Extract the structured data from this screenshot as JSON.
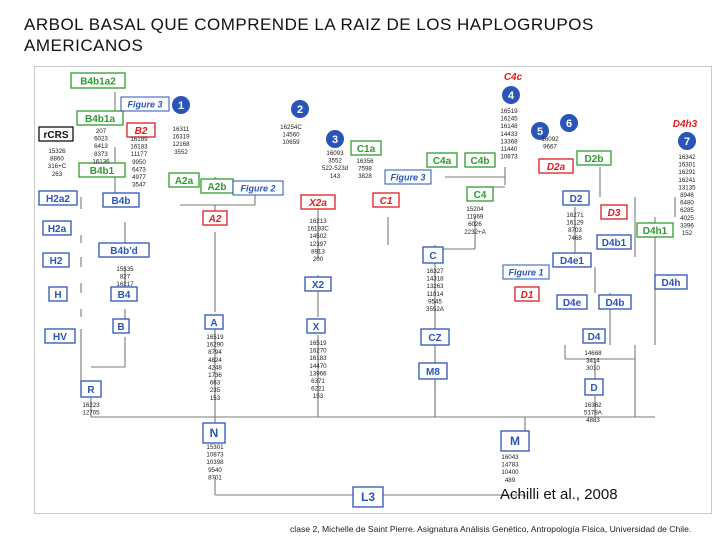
{
  "title": "ARBOL BASAL QUE COMPRENDE LA RAIZ DE LOS HAPLOGRUPOS AMERICANOS",
  "citation": "Achilli  et al., 2008",
  "footer": "clase 2, Michelle de Saint Pierre.  Asignatura Análisis Genético, Antropología Física, Universidad de Chile.",
  "colors": {
    "box_green": "#2e9b2e",
    "box_blue": "#2a55b8",
    "box_red": "#e01c1c",
    "line": "#7a7a7a",
    "circle": "#2a55b8"
  },
  "figure_labels": [
    "Figure 3",
    "Figure 2",
    "Figure 3",
    "Figure 1"
  ],
  "circles": [
    "1",
    "2",
    "3",
    "4",
    "5",
    "6",
    "7"
  ],
  "haplogroups": [
    {
      "id": "B4b1a2",
      "label": "B4b1a2",
      "color": "green"
    },
    {
      "id": "B4b1a",
      "label": "B4b1a",
      "color": "green"
    },
    {
      "id": "B2",
      "label": "B2",
      "color": "red"
    },
    {
      "id": "rCRS",
      "label": "rCRS",
      "color": "black"
    },
    {
      "id": "B4b1",
      "label": "B4b1",
      "color": "green"
    },
    {
      "id": "H2a2",
      "label": "H2a2",
      "color": "blue"
    },
    {
      "id": "B4b",
      "label": "B4b",
      "color": "blue"
    },
    {
      "id": "H2a",
      "label": "H2a",
      "color": "blue"
    },
    {
      "id": "H2",
      "label": "H2",
      "color": "blue"
    },
    {
      "id": "H",
      "label": "H",
      "color": "blue"
    },
    {
      "id": "HV",
      "label": "HV",
      "color": "blue"
    },
    {
      "id": "R",
      "label": "R",
      "color": "blue"
    },
    {
      "id": "B4d",
      "label": "B4b'd",
      "color": "blue"
    },
    {
      "id": "B4",
      "label": "B4",
      "color": "blue"
    },
    {
      "id": "B",
      "label": "B",
      "color": "blue"
    },
    {
      "id": "A2a",
      "label": "A2a",
      "color": "green"
    },
    {
      "id": "A2b",
      "label": "A2b",
      "color": "green"
    },
    {
      "id": "A2",
      "label": "A2",
      "color": "red"
    },
    {
      "id": "A",
      "label": "A",
      "color": "blue"
    },
    {
      "id": "N",
      "label": "N",
      "color": "blue"
    },
    {
      "id": "C1a",
      "label": "C1a",
      "color": "green"
    },
    {
      "id": "X2a",
      "label": "X2a",
      "color": "red"
    },
    {
      "id": "C1",
      "label": "C1",
      "color": "red"
    },
    {
      "id": "X2",
      "label": "X2",
      "color": "blue"
    },
    {
      "id": "X",
      "label": "X",
      "color": "blue"
    },
    {
      "id": "C4a",
      "label": "C4a",
      "color": "green"
    },
    {
      "id": "C4b",
      "label": "C4b",
      "color": "green"
    },
    {
      "id": "C4c",
      "label": "C4c",
      "color": "red"
    },
    {
      "id": "C4",
      "label": "C4",
      "color": "green"
    },
    {
      "id": "C",
      "label": "C",
      "color": "blue"
    },
    {
      "id": "CZ",
      "label": "CZ",
      "color": "blue"
    },
    {
      "id": "M8",
      "label": "M8",
      "color": "blue"
    },
    {
      "id": "M",
      "label": "M",
      "color": "blue"
    },
    {
      "id": "L3",
      "label": "L3",
      "color": "blue"
    },
    {
      "id": "D2a",
      "label": "D2a",
      "color": "red"
    },
    {
      "id": "D2b",
      "label": "D2b",
      "color": "green"
    },
    {
      "id": "D2",
      "label": "D2",
      "color": "blue"
    },
    {
      "id": "D3",
      "label": "D3",
      "color": "red"
    },
    {
      "id": "D4b1",
      "label": "D4b1",
      "color": "blue"
    },
    {
      "id": "D4e1",
      "label": "D4e1",
      "color": "blue"
    },
    {
      "id": "D1",
      "label": "D1",
      "color": "red"
    },
    {
      "id": "D4e",
      "label": "D4e",
      "color": "blue"
    },
    {
      "id": "D4b",
      "label": "D4b",
      "color": "blue"
    },
    {
      "id": "D4",
      "label": "D4",
      "color": "blue"
    },
    {
      "id": "D",
      "label": "D",
      "color": "blue"
    },
    {
      "id": "D4h3",
      "label": "D4h3",
      "color": "red"
    },
    {
      "id": "D4h1",
      "label": "D4h1",
      "color": "green"
    },
    {
      "id": "D4h",
      "label": "D4h",
      "color": "blue"
    }
  ],
  "mutation_columns": [
    [
      "15326",
      "8860",
      "316+C",
      "263"
    ],
    [
      "207",
      "6023",
      "6413",
      "8373",
      "16136"
    ],
    [
      "16189",
      "16183",
      "11177",
      "9950",
      "6473",
      "4977",
      "3547"
    ],
    [
      "16311",
      "16319",
      "12168",
      "3552"
    ],
    [
      "16254C",
      "14560",
      "10659"
    ],
    [
      "16093",
      "3552",
      "522-523d",
      "143"
    ],
    [
      "16356",
      "7598",
      "3828"
    ],
    [
      "16519",
      "16245",
      "16148",
      "14433",
      "13368",
      "11440",
      "10873"
    ],
    [
      "16092",
      "9667"
    ],
    [
      "16342",
      "16301",
      "16291",
      "16241",
      "13135",
      "8946",
      "6480",
      "6285",
      "4025",
      "3396",
      "152"
    ],
    [
      "16213",
      "16193C",
      "14502",
      "12397",
      "8913",
      "200"
    ],
    [
      "16327",
      "14318",
      "13263",
      "11014",
      "9545",
      "3552A"
    ],
    [
      "15535",
      "827",
      "16217"
    ],
    [
      "16519",
      "16290",
      "8794",
      "4824",
      "4248",
      "1736",
      "663",
      "235",
      "153"
    ],
    [
      "16519",
      "16270",
      "16183",
      "14470",
      "13966",
      "6371",
      "6221",
      "153"
    ],
    [
      "16223",
      "12705"
    ],
    [
      "15301",
      "10873",
      "10398",
      "9540",
      "8701"
    ],
    [
      "16043",
      "14783",
      "10400",
      "489"
    ],
    [
      "14668",
      "3414",
      "3010"
    ],
    [
      "16362",
      "5178A",
      "4883"
    ],
    [
      "15204",
      "11969",
      "6026",
      "2232+A"
    ],
    [
      "16271",
      "16129",
      "8703",
      "7468"
    ]
  ]
}
